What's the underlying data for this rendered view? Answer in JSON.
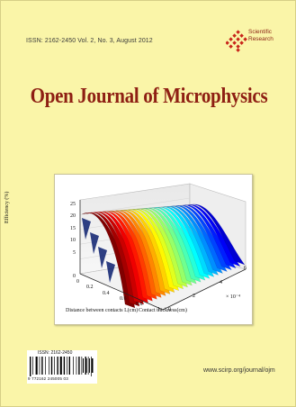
{
  "header": {
    "issn_line": "ISSN: 2162-2450   Vol. 2, No. 3, August 2012",
    "publisher_line1": "Scientific",
    "publisher_line2": "Research",
    "logo_color": "#c8241a"
  },
  "journal": {
    "title": "Open Journal of Microphysics",
    "title_color": "#8e1f13",
    "background_color": "#faf5a8"
  },
  "figure": {
    "y_axis_label": "Efficiency (%)",
    "x_axis_label": "Distance between contacts L(cm)",
    "z_axis_label": "Contact thickness(cm)",
    "y_ticks": [
      "25",
      "20",
      "15",
      "10",
      "5",
      "0"
    ],
    "x_ticks": [
      "0",
      "0.2",
      "0.4",
      "0.6",
      "0.8",
      "1"
    ],
    "z_ticks": [
      "0",
      "2",
      "4",
      "6"
    ],
    "z_multiplier": "× 10⁻⁴"
  },
  "barcode": {
    "issn": "ISSN: 2162-2450",
    "number": "9  772162  245005  03"
  },
  "footer": {
    "url": "www.scirp.org/journal/ojm"
  }
}
